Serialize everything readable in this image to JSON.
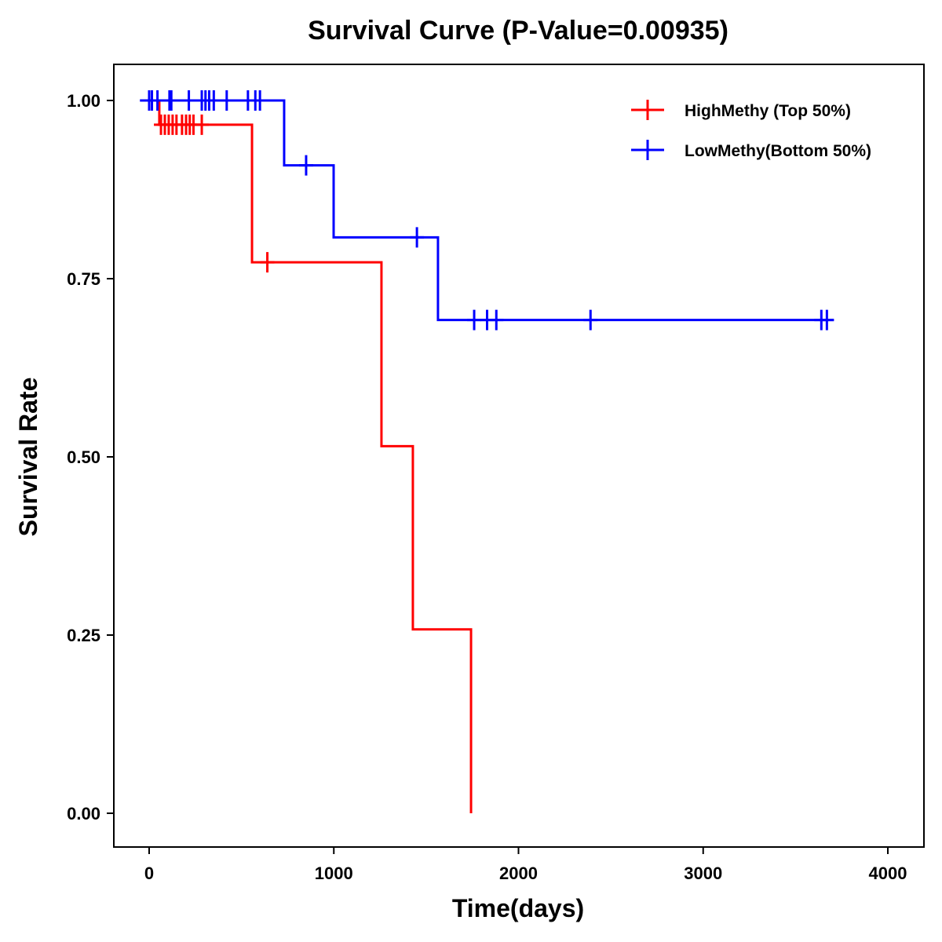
{
  "chart_data": {
    "type": "line",
    "title": "Survival Curve (P-Value=0.00935)",
    "xlabel": "Time(days)",
    "ylabel": "Survival Rate",
    "xlim": [
      -200,
      4150
    ],
    "ylim": [
      -0.04,
      1.05
    ],
    "xticks": [
      0,
      1000,
      2000,
      3000,
      4000
    ],
    "xtick_labels": [
      "0",
      "1000",
      "2000",
      "3000",
      "4000"
    ],
    "yticks": [
      0,
      0.25,
      0.5,
      0.75,
      1
    ],
    "ytick_labels": [
      "0.00",
      "0.25",
      "0.50",
      "0.75",
      "1.00"
    ],
    "legend_position": "top-right",
    "series": [
      {
        "name": "HighMethy (Top 50%)",
        "color": "#ff0000",
        "steps": [
          [
            0,
            1.0
          ],
          [
            55,
            0.966
          ],
          [
            557,
            0.773
          ],
          [
            1258,
            0.515
          ],
          [
            1428,
            0.258
          ],
          [
            1743,
            0.0
          ]
        ],
        "end": 1743,
        "censor": [
          64,
          85,
          106,
          127,
          148,
          178,
          200,
          220,
          240,
          285,
          640
        ]
      },
      {
        "name": "LowMethy(Bottom 50%)",
        "color": "#0000ff",
        "steps": [
          [
            -50,
            1.0
          ],
          [
            731,
            0.909
          ],
          [
            999,
            0.808
          ],
          [
            1564,
            0.692
          ]
        ],
        "end": 3707,
        "censor": [
          0,
          15,
          45,
          110,
          120,
          215,
          285,
          305,
          325,
          350,
          420,
          535,
          575,
          600,
          850,
          1450,
          1760,
          1830,
          1880,
          2390,
          3640,
          3670
        ]
      }
    ]
  }
}
